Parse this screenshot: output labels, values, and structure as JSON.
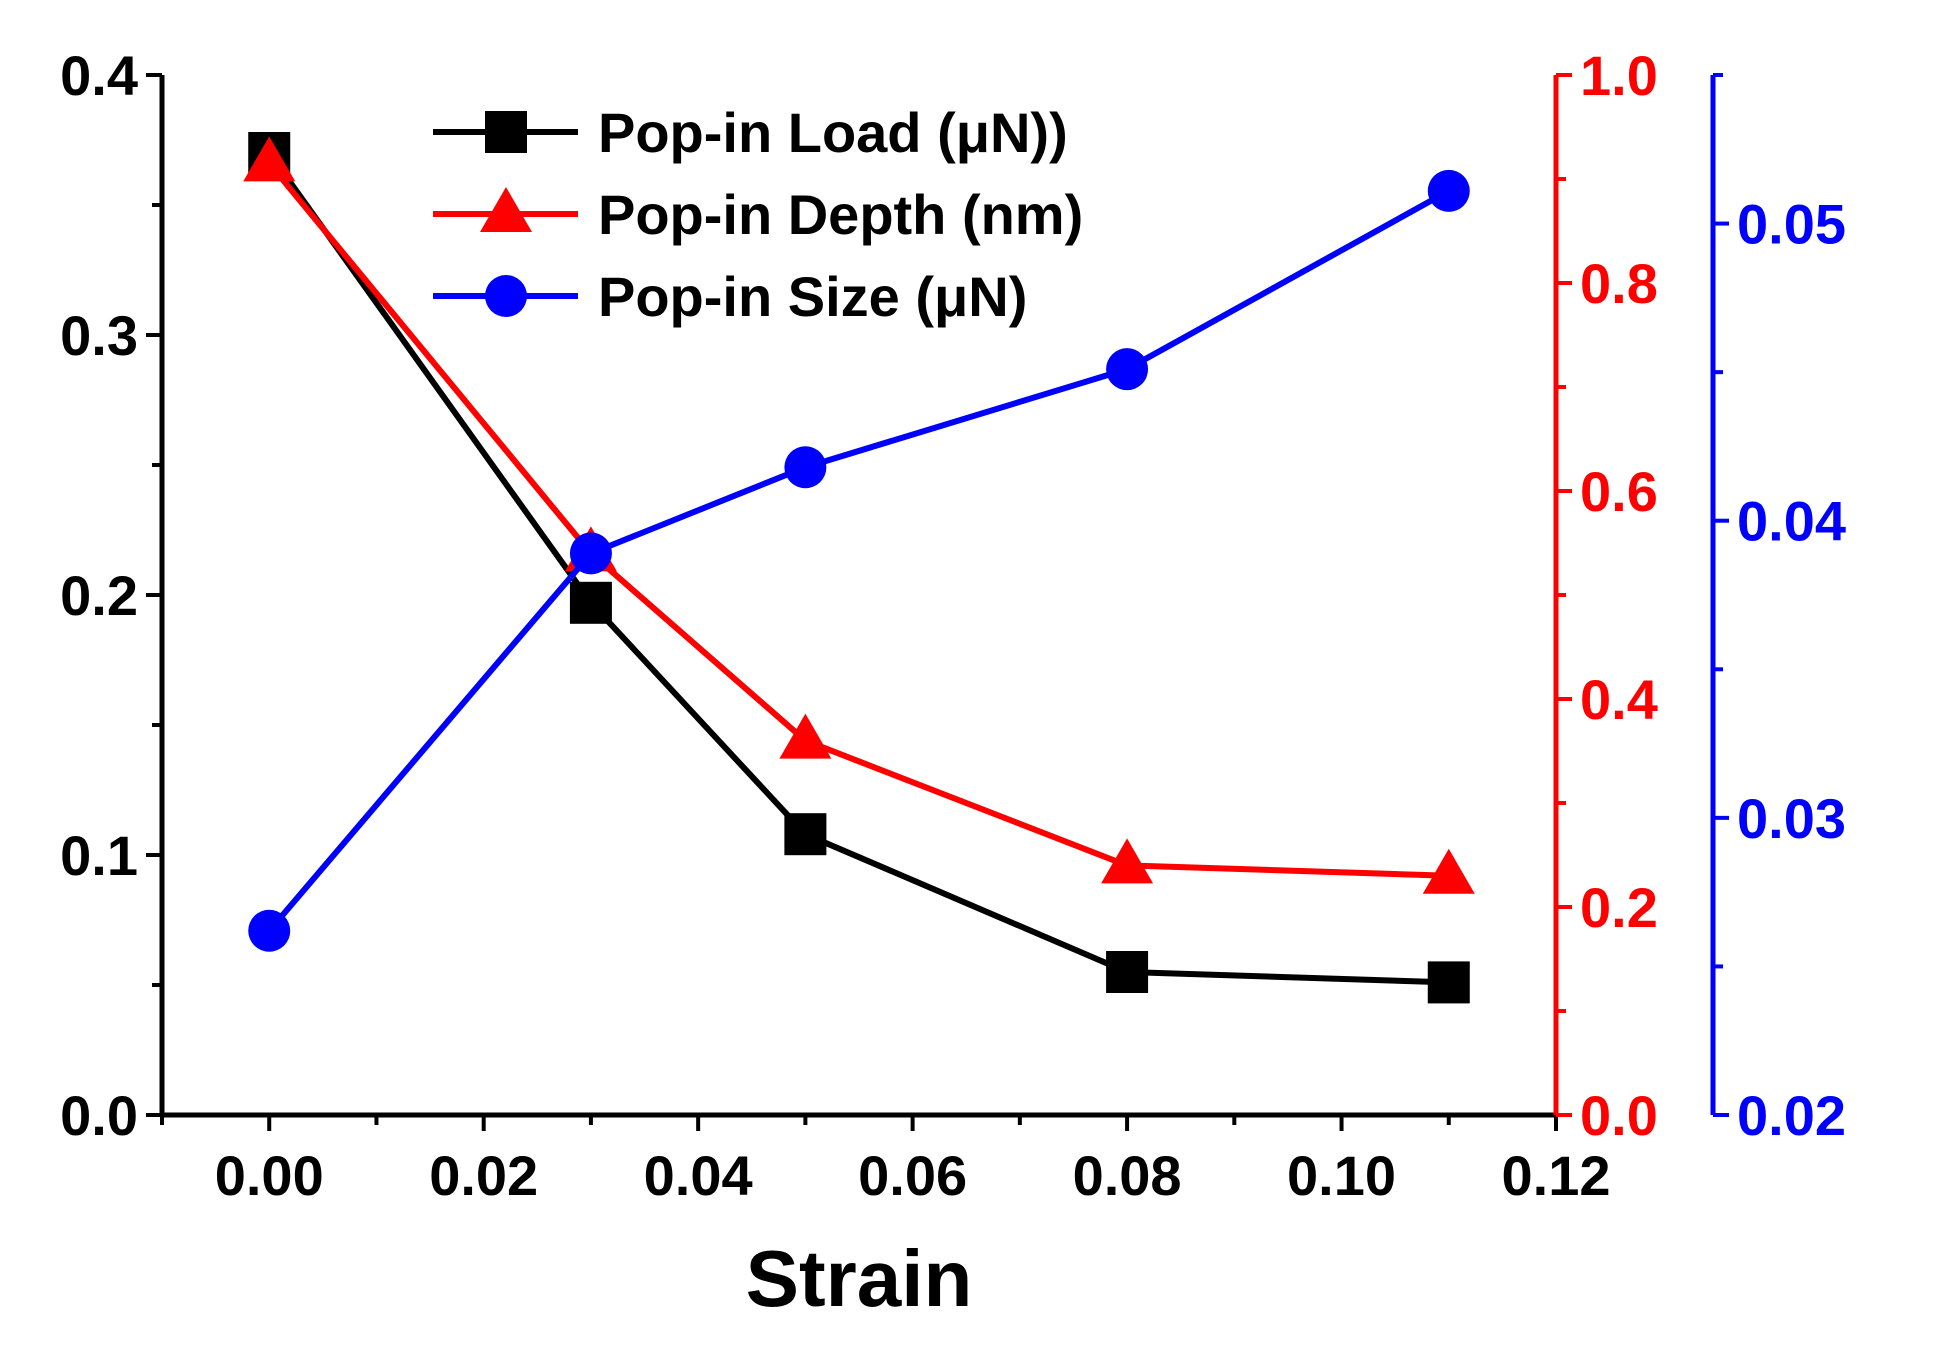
{
  "chart_data": {
    "type": "line",
    "xlabel": "Strain",
    "xlim": [
      -0.01,
      0.12
    ],
    "x_ticks": [
      "0.00",
      "0.02",
      "0.04",
      "0.06",
      "0.08",
      "0.10",
      "0.12"
    ],
    "x_tick_values": [
      0.0,
      0.02,
      0.04,
      0.06,
      0.08,
      0.1,
      0.12
    ],
    "x": [
      0.0,
      0.03,
      0.05,
      0.08,
      0.11
    ],
    "legend_position": "top-left",
    "axes": {
      "left": {
        "color": "#000000",
        "ylim": [
          0.0,
          0.4
        ],
        "ticks": [
          "0.0",
          "0.1",
          "0.2",
          "0.3",
          "0.4"
        ],
        "tick_values": [
          0.0,
          0.1,
          0.2,
          0.3,
          0.4
        ],
        "minor_step": 0.05
      },
      "right": {
        "color": "#ff0000",
        "ylim": [
          0.0,
          1.0
        ],
        "ticks": [
          "0.0",
          "0.2",
          "0.4",
          "0.6",
          "0.8",
          "1.0"
        ],
        "tick_values": [
          0.0,
          0.2,
          0.4,
          0.6,
          0.8,
          1.0
        ],
        "minor_step": 0.1
      },
      "right2": {
        "color": "#0000ff",
        "ylim": [
          0.02,
          0.055
        ],
        "ticks": [
          "0.02",
          "0.03",
          "0.04",
          "0.05"
        ],
        "tick_values": [
          0.02,
          0.03,
          0.04,
          0.05
        ],
        "minor_step": 0.005
      }
    },
    "series": [
      {
        "name": "Pop-in Load (μN))",
        "axis": "left",
        "color": "#000000",
        "marker": "square",
        "values": [
          0.37,
          0.197,
          0.108,
          0.055,
          0.051
        ]
      },
      {
        "name": "Pop-in Depth (nm)",
        "axis": "right",
        "color": "#ff0000",
        "marker": "triangle",
        "values": [
          0.915,
          0.54,
          0.36,
          0.24,
          0.23
        ]
      },
      {
        "name": "Pop-in Size (μN)",
        "axis": "right2",
        "color": "#0000ff",
        "marker": "circle",
        "values": [
          0.0262,
          0.0389,
          0.0418,
          0.0451,
          0.0511
        ]
      }
    ]
  }
}
